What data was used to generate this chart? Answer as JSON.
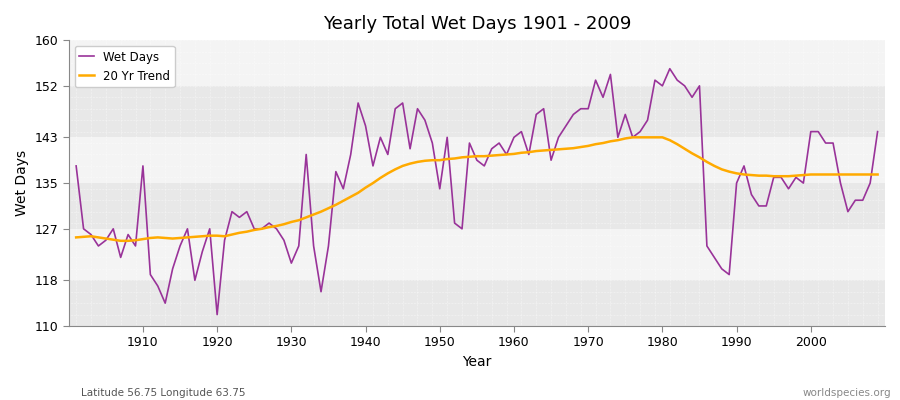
{
  "title": "Yearly Total Wet Days 1901 - 2009",
  "xlabel": "Year",
  "ylabel": "Wet Days",
  "footnote_left": "Latitude 56.75 Longitude 63.75",
  "footnote_right": "worldspecies.org",
  "ylim": [
    110,
    160
  ],
  "yticks": [
    110,
    118,
    127,
    135,
    143,
    152,
    160
  ],
  "line_color": "#993399",
  "trend_color": "#ffaa00",
  "bg_color": "#ffffff",
  "plot_bg_color": "#f0f0f0",
  "band_colors": [
    "#e8e8e8",
    "#f4f4f4"
  ],
  "legend_entries": [
    "Wet Days",
    "20 Yr Trend"
  ],
  "years": [
    1901,
    1902,
    1903,
    1904,
    1905,
    1906,
    1907,
    1908,
    1909,
    1910,
    1911,
    1912,
    1913,
    1914,
    1915,
    1916,
    1917,
    1918,
    1919,
    1920,
    1921,
    1922,
    1923,
    1924,
    1925,
    1926,
    1927,
    1928,
    1929,
    1930,
    1931,
    1932,
    1933,
    1934,
    1935,
    1936,
    1937,
    1938,
    1939,
    1940,
    1941,
    1942,
    1943,
    1944,
    1945,
    1946,
    1947,
    1948,
    1949,
    1950,
    1951,
    1952,
    1953,
    1954,
    1955,
    1956,
    1957,
    1958,
    1959,
    1960,
    1961,
    1962,
    1963,
    1964,
    1965,
    1966,
    1967,
    1968,
    1969,
    1970,
    1971,
    1972,
    1973,
    1974,
    1975,
    1976,
    1977,
    1978,
    1979,
    1980,
    1981,
    1982,
    1983,
    1984,
    1985,
    1986,
    1987,
    1988,
    1989,
    1990,
    1991,
    1992,
    1993,
    1994,
    1995,
    1996,
    1997,
    1998,
    1999,
    2000,
    2001,
    2002,
    2003,
    2004,
    2005,
    2006,
    2007,
    2008,
    2009
  ],
  "wet_days": [
    138,
    127,
    126,
    124,
    125,
    127,
    122,
    126,
    124,
    138,
    119,
    117,
    114,
    120,
    124,
    127,
    118,
    123,
    127,
    112,
    125,
    130,
    129,
    130,
    127,
    127,
    128,
    127,
    125,
    121,
    124,
    140,
    124,
    116,
    124,
    137,
    134,
    140,
    149,
    145,
    138,
    143,
    140,
    148,
    149,
    141,
    148,
    146,
    142,
    134,
    143,
    128,
    127,
    142,
    139,
    138,
    141,
    142,
    140,
    143,
    144,
    140,
    147,
    148,
    139,
    143,
    145,
    147,
    148,
    148,
    153,
    150,
    154,
    143,
    147,
    143,
    144,
    146,
    153,
    152,
    155,
    153,
    152,
    150,
    152,
    124,
    122,
    120,
    119,
    135,
    138,
    133,
    131,
    131,
    136,
    136,
    134,
    136,
    135,
    144,
    144,
    142,
    142,
    135,
    130,
    132,
    132,
    135,
    144
  ],
  "trend": [
    125.5,
    125.6,
    125.7,
    125.5,
    125.3,
    125.1,
    124.9,
    124.9,
    125.0,
    125.2,
    125.4,
    125.5,
    125.4,
    125.3,
    125.4,
    125.5,
    125.6,
    125.7,
    125.8,
    125.8,
    125.7,
    126.0,
    126.3,
    126.5,
    126.8,
    127.0,
    127.3,
    127.5,
    127.8,
    128.2,
    128.5,
    129.0,
    129.5,
    130.0,
    130.6,
    131.2,
    131.9,
    132.6,
    133.3,
    134.2,
    135.0,
    135.9,
    136.7,
    137.4,
    138.0,
    138.4,
    138.7,
    138.9,
    139.0,
    139.0,
    139.2,
    139.3,
    139.5,
    139.6,
    139.7,
    139.7,
    139.8,
    139.9,
    140.0,
    140.1,
    140.3,
    140.4,
    140.6,
    140.7,
    140.8,
    140.9,
    141.0,
    141.1,
    141.3,
    141.5,
    141.8,
    142.0,
    142.3,
    142.5,
    142.8,
    143.0,
    143.0,
    143.0,
    143.0,
    143.0,
    142.5,
    141.8,
    141.0,
    140.2,
    139.5,
    138.7,
    138.0,
    137.4,
    137.0,
    136.7,
    136.5,
    136.4,
    136.3,
    136.3,
    136.2,
    136.2,
    136.2,
    136.3,
    136.4,
    136.5,
    136.5,
    136.5,
    136.5,
    136.5,
    136.5,
    136.5,
    136.5,
    136.5,
    136.5
  ]
}
